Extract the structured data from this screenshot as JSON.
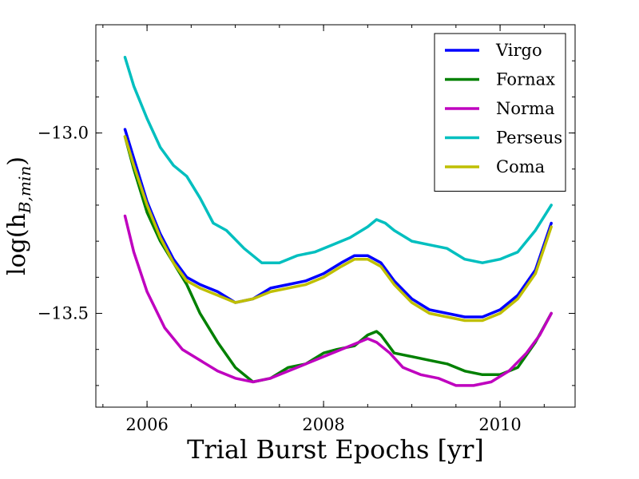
{
  "chart_data": {
    "type": "line",
    "title": "",
    "xlabel": "Trial Burst Epochs [yr]",
    "ylabel": "log(h_{B,min})",
    "ylabel_parts": {
      "main": "log(h",
      "sub": "B,min",
      "close": ")"
    },
    "xlim": [
      2005.42,
      2010.85
    ],
    "ylim": [
      -13.76,
      -12.7
    ],
    "xticks": [
      2006,
      2008,
      2010
    ],
    "xtick_labels": [
      "2006",
      "2008",
      "2010"
    ],
    "xminor_step": 0.5,
    "yticks": [
      -13.0,
      -13.5
    ],
    "ytick_labels": [
      "−13.0",
      "−13.5"
    ],
    "yminor_step": 0.1,
    "grid": false,
    "legend_position": "top-right",
    "series": [
      {
        "name": "Virgo",
        "color": "#0000ff",
        "x": [
          2005.75,
          2005.85,
          2006.0,
          2006.15,
          2006.3,
          2006.45,
          2006.6,
          2006.8,
          2007.0,
          2007.2,
          2007.4,
          2007.6,
          2007.8,
          2008.0,
          2008.2,
          2008.35,
          2008.5,
          2008.65,
          2008.8,
          2009.0,
          2009.2,
          2009.4,
          2009.6,
          2009.8,
          2010.0,
          2010.2,
          2010.4,
          2010.58
        ],
        "values": [
          -12.99,
          -13.07,
          -13.19,
          -13.28,
          -13.35,
          -13.4,
          -13.42,
          -13.44,
          -13.47,
          -13.46,
          -13.43,
          -13.42,
          -13.41,
          -13.39,
          -13.36,
          -13.34,
          -13.34,
          -13.36,
          -13.41,
          -13.46,
          -13.49,
          -13.5,
          -13.51,
          -13.51,
          -13.49,
          -13.45,
          -13.38,
          -13.25
        ]
      },
      {
        "name": "Fornax",
        "color": "#008000",
        "x": [
          2005.75,
          2005.85,
          2006.0,
          2006.15,
          2006.3,
          2006.45,
          2006.6,
          2006.8,
          2007.0,
          2007.2,
          2007.4,
          2007.6,
          2007.8,
          2008.0,
          2008.15,
          2008.35,
          2008.5,
          2008.6,
          2008.65,
          2008.8,
          2009.0,
          2009.2,
          2009.4,
          2009.6,
          2009.8,
          2010.0,
          2010.2,
          2010.4,
          2010.58
        ],
        "values": [
          -13.01,
          -13.1,
          -13.22,
          -13.3,
          -13.36,
          -13.42,
          -13.5,
          -13.58,
          -13.65,
          -13.69,
          -13.68,
          -13.65,
          -13.64,
          -13.61,
          -13.6,
          -13.59,
          -13.56,
          -13.55,
          -13.56,
          -13.61,
          -13.62,
          -13.63,
          -13.64,
          -13.66,
          -13.67,
          -13.67,
          -13.65,
          -13.58,
          -13.5
        ]
      },
      {
        "name": "Norma",
        "color": "#bf00bf",
        "x": [
          2005.75,
          2005.85,
          2006.0,
          2006.2,
          2006.4,
          2006.6,
          2006.8,
          2007.0,
          2007.2,
          2007.4,
          2007.6,
          2007.8,
          2008.0,
          2008.2,
          2008.4,
          2008.5,
          2008.6,
          2008.75,
          2008.9,
          2009.1,
          2009.3,
          2009.5,
          2009.7,
          2009.9,
          2010.1,
          2010.3,
          2010.45,
          2010.58
        ],
        "values": [
          -13.23,
          -13.33,
          -13.44,
          -13.54,
          -13.6,
          -13.63,
          -13.66,
          -13.68,
          -13.69,
          -13.68,
          -13.66,
          -13.64,
          -13.62,
          -13.6,
          -13.58,
          -13.57,
          -13.58,
          -13.61,
          -13.65,
          -13.67,
          -13.68,
          -13.7,
          -13.7,
          -13.69,
          -13.66,
          -13.61,
          -13.56,
          -13.5
        ]
      },
      {
        "name": "Perseus",
        "color": "#00bfbf",
        "x": [
          2005.75,
          2005.85,
          2006.0,
          2006.15,
          2006.3,
          2006.45,
          2006.6,
          2006.75,
          2006.9,
          2007.1,
          2007.3,
          2007.5,
          2007.7,
          2007.9,
          2008.1,
          2008.3,
          2008.5,
          2008.6,
          2008.7,
          2008.8,
          2009.0,
          2009.2,
          2009.4,
          2009.6,
          2009.8,
          2010.0,
          2010.2,
          2010.4,
          2010.58
        ],
        "values": [
          -12.79,
          -12.87,
          -12.96,
          -13.04,
          -13.09,
          -13.12,
          -13.18,
          -13.25,
          -13.27,
          -13.32,
          -13.36,
          -13.36,
          -13.34,
          -13.33,
          -13.31,
          -13.29,
          -13.26,
          -13.24,
          -13.25,
          -13.27,
          -13.3,
          -13.31,
          -13.32,
          -13.35,
          -13.36,
          -13.35,
          -13.33,
          -13.27,
          -13.2
        ]
      },
      {
        "name": "Coma",
        "color": "#bfbf00",
        "x": [
          2005.75,
          2005.85,
          2006.0,
          2006.15,
          2006.3,
          2006.45,
          2006.6,
          2006.8,
          2007.0,
          2007.2,
          2007.4,
          2007.6,
          2007.8,
          2008.0,
          2008.2,
          2008.35,
          2008.5,
          2008.65,
          2008.8,
          2009.0,
          2009.2,
          2009.4,
          2009.6,
          2009.8,
          2010.0,
          2010.2,
          2010.4,
          2010.58
        ],
        "values": [
          -13.01,
          -13.09,
          -13.2,
          -13.29,
          -13.36,
          -13.41,
          -13.43,
          -13.45,
          -13.47,
          -13.46,
          -13.44,
          -13.43,
          -13.42,
          -13.4,
          -13.37,
          -13.35,
          -13.35,
          -13.37,
          -13.42,
          -13.47,
          -13.5,
          -13.51,
          -13.52,
          -13.52,
          -13.5,
          -13.46,
          -13.39,
          -13.26
        ]
      }
    ]
  }
}
